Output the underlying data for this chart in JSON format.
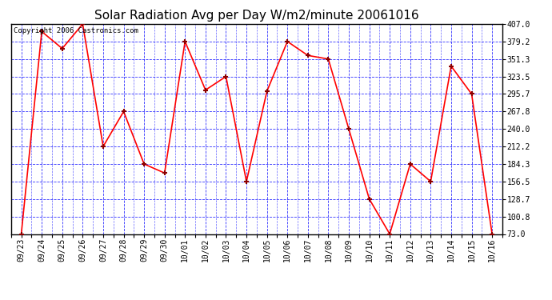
{
  "title": "Solar Radiation Avg per Day W/m2/minute 20061016",
  "copyright": "Copyright 2006 Castronics.com",
  "background_color": "#ffffff",
  "plot_bg_color": "#ffffff",
  "line_color": "red",
  "marker_color": "darkred",
  "grid_color": "blue",
  "dates": [
    "09/23",
    "09/24",
    "09/25",
    "09/26",
    "09/27",
    "09/28",
    "09/29",
    "09/30",
    "10/01",
    "10/02",
    "10/03",
    "10/04",
    "10/05",
    "10/06",
    "10/07",
    "10/08",
    "10/09",
    "10/10",
    "10/11",
    "10/12",
    "10/13",
    "10/14",
    "10/15",
    "10/16"
  ],
  "values": [
    73.0,
    395.0,
    368.0,
    407.0,
    212.2,
    267.8,
    184.3,
    170.0,
    379.2,
    302.0,
    323.5,
    156.5,
    300.0,
    379.2,
    357.0,
    351.3,
    240.0,
    128.7,
    73.0,
    184.3,
    156.5,
    340.0,
    295.7,
    73.0
  ],
  "ylim": [
    73.0,
    407.0
  ],
  "yticks": [
    73.0,
    100.8,
    128.7,
    156.5,
    184.3,
    212.2,
    240.0,
    267.8,
    295.7,
    323.5,
    351.3,
    379.2,
    407.0
  ],
  "title_fontsize": 11,
  "tick_fontsize": 7,
  "copyright_fontsize": 6.5
}
